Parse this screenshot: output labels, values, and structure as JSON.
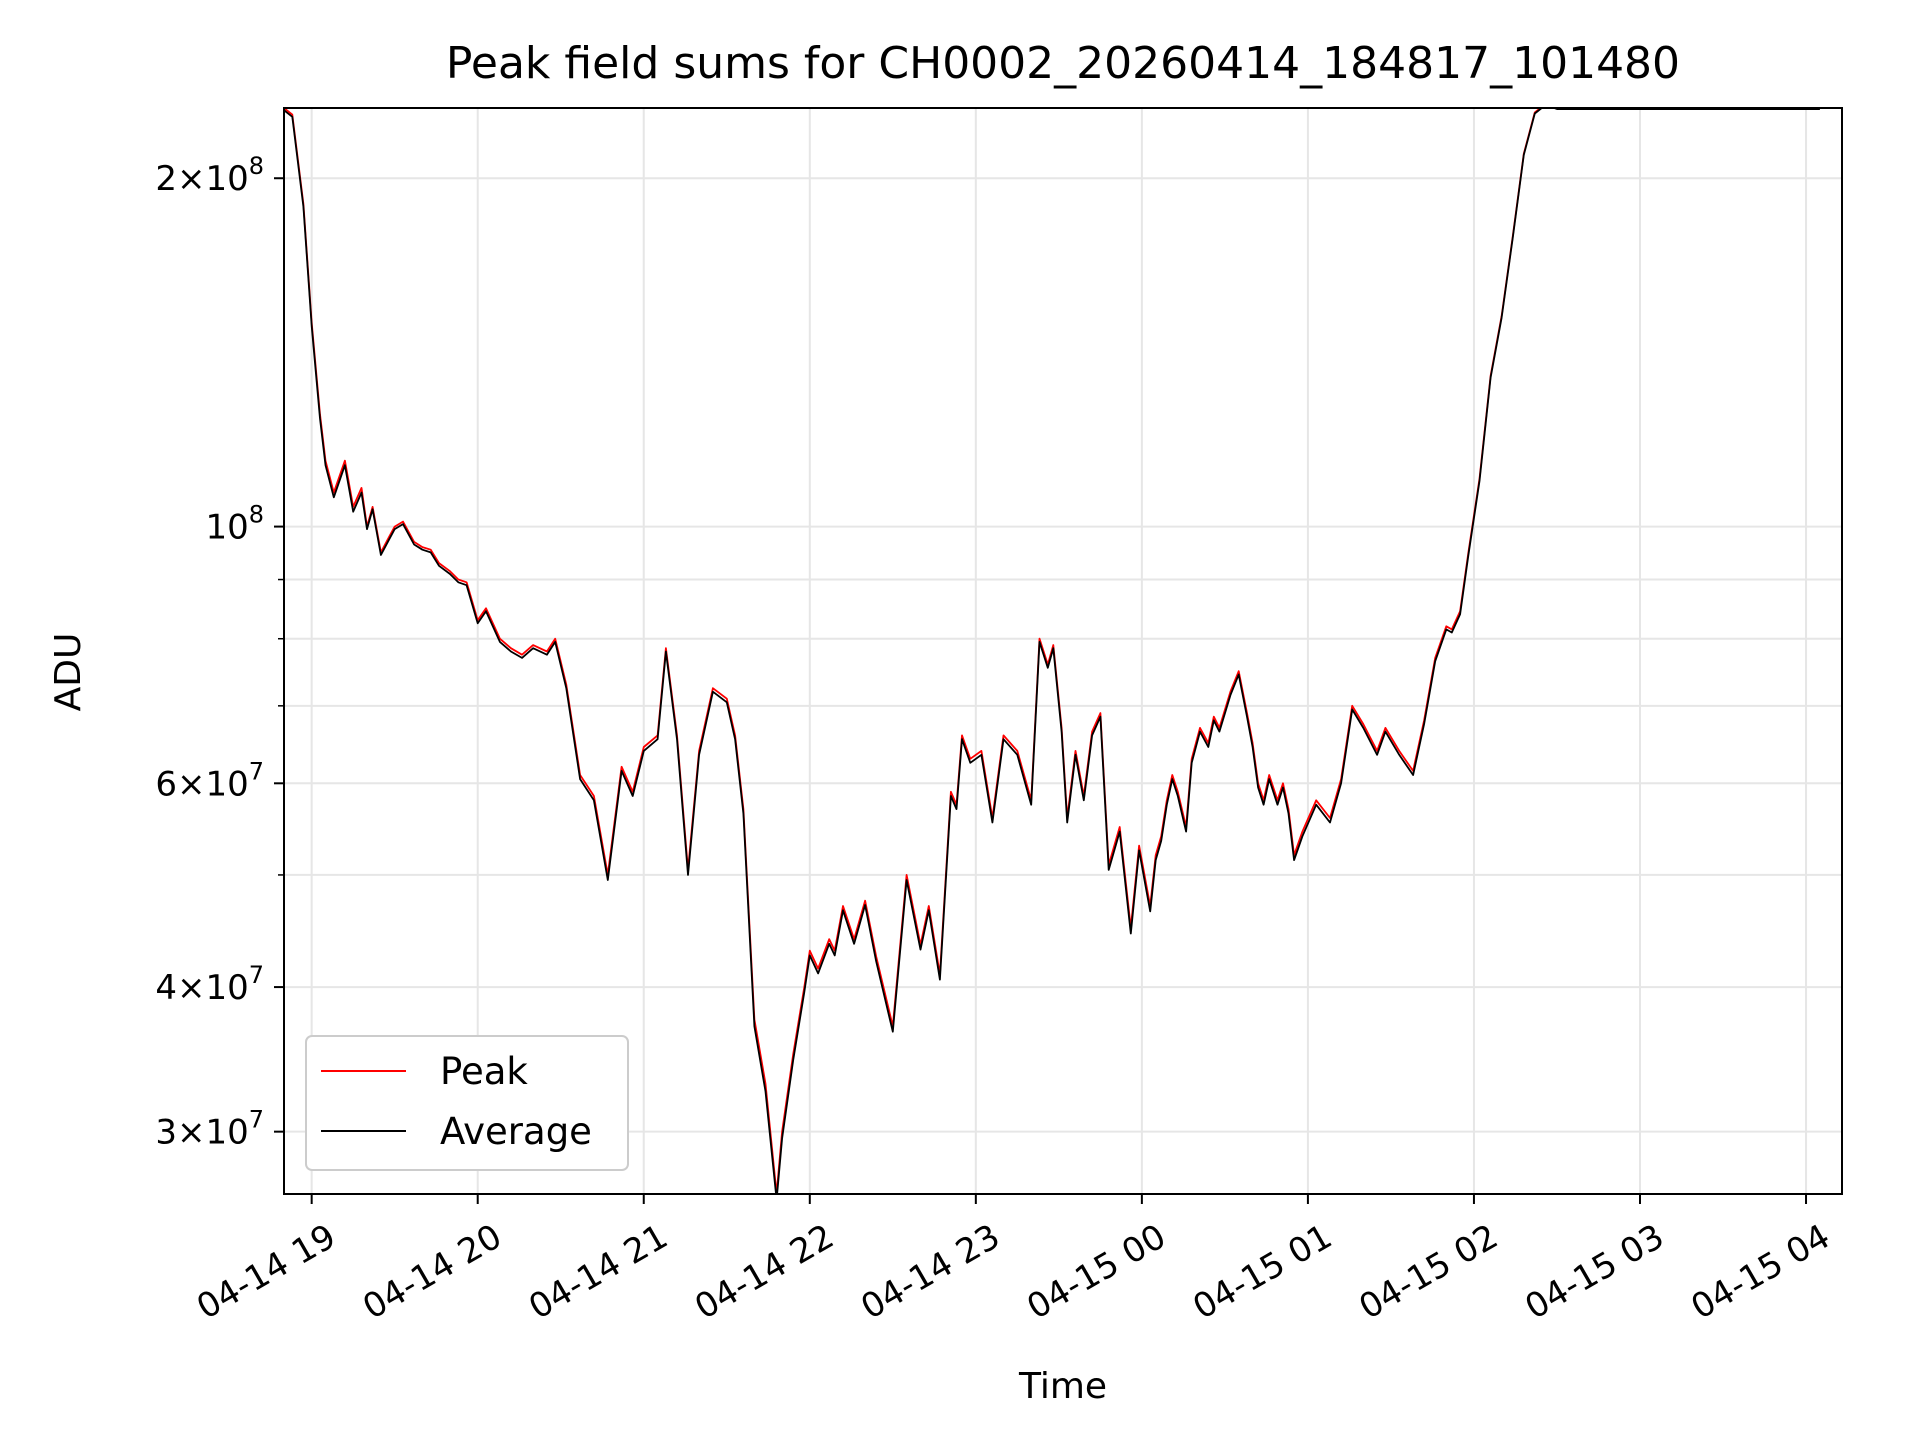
{
  "chart_data": {
    "type": "line",
    "title": "Peak field sums for CH0002_20260414_184817_101480",
    "xlabel": "Time",
    "ylabel": "ADU",
    "yscale": "log",
    "grid": true,
    "legend_position": "lower-left",
    "xlim": [
      "04-14 18:50",
      "04-15 04:13"
    ],
    "ylim": [
      26500000,
      230000000
    ],
    "x_ticks": [
      "04-14 19",
      "04-14 20",
      "04-14 21",
      "04-14 22",
      "04-14 23",
      "04-15 00",
      "04-15 01",
      "04-15 02",
      "04-15 03",
      "04-15 04"
    ],
    "y_ticks": [
      {
        "value": 30000000,
        "mantissa": "3",
        "exponent": "7"
      },
      {
        "value": 40000000,
        "mantissa": "4",
        "exponent": "7"
      },
      {
        "value": 60000000,
        "mantissa": "6",
        "exponent": "7"
      },
      {
        "value": 100000000,
        "mantissa": "",
        "exponent": "8"
      },
      {
        "value": 200000000,
        "mantissa": "2",
        "exponent": "8"
      }
    ],
    "y_minor_ticks": [
      50000000,
      70000000,
      80000000,
      90000000
    ],
    "x": [
      "18:50",
      "18:53",
      "18:57",
      "19:00",
      "19:03",
      "19:05",
      "19:08",
      "19:12",
      "19:15",
      "19:18",
      "19:20",
      "19:22",
      "19:25",
      "19:28",
      "19:30",
      "19:33",
      "19:37",
      "19:40",
      "19:43",
      "19:46",
      "19:50",
      "19:53",
      "19:56",
      "20:00",
      "20:03",
      "20:08",
      "20:12",
      "20:16",
      "20:20",
      "20:25",
      "20:28",
      "20:32",
      "20:37",
      "20:42",
      "20:47",
      "20:52",
      "20:56",
      "21:00",
      "21:05",
      "21:08",
      "21:12",
      "21:16",
      "21:20",
      "21:25",
      "21:30",
      "21:33",
      "21:36",
      "21:40",
      "21:44",
      "21:48",
      "21:50",
      "21:54",
      "21:58",
      "22:00",
      "22:03",
      "22:07",
      "22:09",
      "22:12",
      "22:16",
      "22:20",
      "22:24",
      "22:30",
      "22:35",
      "22:40",
      "22:43",
      "22:47",
      "22:50",
      "22:51",
      "22:53",
      "22:55",
      "22:58",
      "23:02",
      "23:06",
      "23:10",
      "23:15",
      "23:20",
      "23:23",
      "23:26",
      "23:28",
      "23:31",
      "23:33",
      "23:36",
      "23:39",
      "23:42",
      "23:45",
      "23:48",
      "23:52",
      "23:56",
      "23:59",
      "00:03",
      "00:05",
      "00:07",
      "00:09",
      "00:11",
      "00:13",
      "00:16",
      "00:18",
      "00:21",
      "00:24",
      "00:26",
      "00:28",
      "00:32",
      "00:35",
      "00:38",
      "00:40",
      "00:42",
      "00:44",
      "00:46",
      "00:49",
      "00:51",
      "00:53",
      "00:55",
      "00:58",
      "01:03",
      "01:08",
      "01:12",
      "01:16",
      "01:20",
      "01:25",
      "01:28",
      "01:33",
      "01:38",
      "01:42",
      "01:46",
      "01:50",
      "01:52",
      "01:55",
      "01:58",
      "02:02",
      "02:06",
      "02:10",
      "02:14",
      "02:18",
      "02:22",
      "02:26",
      "02:30",
      "02:34",
      "02:40",
      "02:43",
      "02:46",
      "02:50",
      "02:55",
      "03:00",
      "03:03",
      "03:08",
      "03:12",
      "03:15",
      "03:20",
      "03:24",
      "03:30",
      "03:35",
      "03:40",
      "03:44",
      "03:48",
      "03:52",
      "03:55",
      "03:59",
      "04:02",
      "04:05"
    ],
    "series": [
      {
        "name": "Peak",
        "color": "#ff0000",
        "values": [
          230000000,
          227000000,
          190000000,
          150000000,
          125000000,
          114000000,
          107000000,
          114000000,
          104000000,
          108000000,
          100000000,
          104000000,
          95000000,
          98000000,
          100000000,
          101000000,
          97000000,
          96000000,
          95500000,
          93000000,
          91500000,
          90000000,
          89500000,
          83000000,
          85000000,
          80000000,
          78500000,
          77500000,
          79000000,
          78000000,
          80000000,
          73000000,
          61000000,
          58500000,
          50000000,
          62000000,
          59000000,
          64500000,
          66000000,
          78500000,
          66000000,
          50500000,
          64000000,
          72500000,
          71000000,
          66000000,
          57000000,
          37500000,
          33000000,
          26500000,
          30000000,
          35000000,
          40000000,
          43000000,
          41500000,
          44000000,
          43000000,
          47000000,
          44000000,
          47500000,
          42500000,
          37000000,
          50000000,
          43500000,
          47000000,
          41000000,
          54000000,
          59000000,
          57500000,
          66000000,
          63000000,
          64000000,
          56000000,
          66000000,
          64000000,
          58000000,
          80000000,
          76000000,
          79000000,
          67000000,
          56000000,
          64000000,
          58500000,
          66500000,
          69000000,
          51000000,
          55000000,
          45000000,
          53000000,
          47000000,
          52000000,
          54000000,
          58000000,
          61000000,
          59000000,
          55000000,
          63000000,
          67000000,
          65000000,
          68500000,
          67000000,
          72000000,
          75000000,
          69000000,
          65000000,
          60000000,
          58000000,
          61000000,
          58000000,
          60000000,
          57000000,
          52000000,
          54500000,
          58000000,
          56000000,
          60500000,
          70000000,
          67500000,
          64000000,
          67000000,
          64000000,
          61500000,
          68000000,
          77000000,
          82000000,
          81500000,
          84500000,
          95000000,
          110000000,
          135000000,
          152000000,
          178000000,
          210000000,
          228000000,
          232000000,
          230000000,
          230000000,
          230000000,
          230000000,
          230000000,
          230000000,
          230000000,
          230000000,
          230000000,
          230000000,
          230000000,
          230000000,
          230000000,
          230000000,
          230000000,
          230000000,
          230000000,
          230000000,
          230000000,
          230000000,
          230000000,
          230000000,
          230000000,
          230000000
        ]
      },
      {
        "name": "Average",
        "color": "#000000",
        "values": [
          229000000,
          226000000,
          189000000,
          149000000,
          124000000,
          113000000,
          106000000,
          113000000,
          103000000,
          107000000,
          99500000,
          103500000,
          94500000,
          97500000,
          99500000,
          100500000,
          96500000,
          95500000,
          95000000,
          92500000,
          91000000,
          89500000,
          89000000,
          82500000,
          84500000,
          79500000,
          78000000,
          77000000,
          78500000,
          77500000,
          79500000,
          72500000,
          60500000,
          58000000,
          49500000,
          61500000,
          58500000,
          64000000,
          65500000,
          78000000,
          65500000,
          50000000,
          63500000,
          72000000,
          70500000,
          65500000,
          56500000,
          37000000,
          32500000,
          26200000,
          29600000,
          34600000,
          39600000,
          42600000,
          41100000,
          43600000,
          42600000,
          46600000,
          43600000,
          47100000,
          42100000,
          36600000,
          49500000,
          43100000,
          46600000,
          40600000,
          53500000,
          58500000,
          57000000,
          65500000,
          62500000,
          63500000,
          55500000,
          65500000,
          63500000,
          57500000,
          79500000,
          75500000,
          78500000,
          66500000,
          55500000,
          63500000,
          58000000,
          66000000,
          68500000,
          50500000,
          54500000,
          44500000,
          52500000,
          46500000,
          51500000,
          53500000,
          57500000,
          60500000,
          58500000,
          54500000,
          62500000,
          66500000,
          64500000,
          68000000,
          66500000,
          71500000,
          74500000,
          68500000,
          64500000,
          59500000,
          57500000,
          60500000,
          57500000,
          59500000,
          56500000,
          51500000,
          54000000,
          57500000,
          55500000,
          60000000,
          69500000,
          67000000,
          63500000,
          66500000,
          63500000,
          61000000,
          67500000,
          76500000,
          81500000,
          81000000,
          84000000,
          94500000,
          109500000,
          134500000,
          151500000,
          177500000,
          209500000,
          227500000,
          231500000,
          229500000,
          229500000,
          229500000,
          229500000,
          229500000,
          229500000,
          229500000,
          229500000,
          229500000,
          229500000,
          229500000,
          229500000,
          229500000,
          229500000,
          229500000,
          229500000,
          229500000,
          229500000,
          229500000,
          229500000,
          229500000,
          229500000,
          229500000,
          229500000
        ]
      }
    ]
  }
}
